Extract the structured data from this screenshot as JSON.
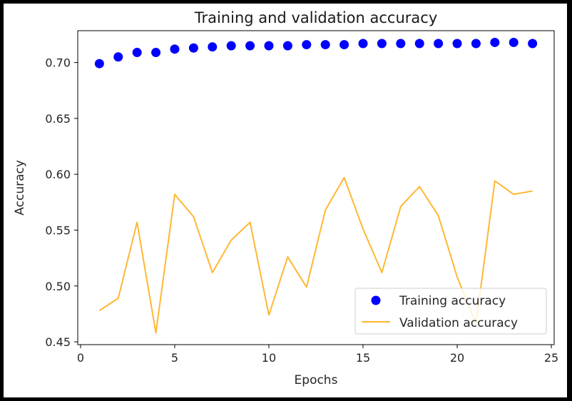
{
  "chart_data": {
    "type": "line",
    "title": "Training and validation accuracy",
    "xlabel": "Epochs",
    "ylabel": "Accuracy",
    "xlim": [
      -0.15,
      25.15
    ],
    "ylim": [
      0.4475,
      0.7285
    ],
    "x_ticks": [
      {
        "value": 0,
        "label": "0"
      },
      {
        "value": 5,
        "label": "5"
      },
      {
        "value": 10,
        "label": "10"
      },
      {
        "value": 15,
        "label": "15"
      },
      {
        "value": 20,
        "label": "20"
      },
      {
        "value": 25,
        "label": "25"
      }
    ],
    "y_ticks": [
      {
        "value": 0.45,
        "label": "0.45"
      },
      {
        "value": 0.5,
        "label": "0.50"
      },
      {
        "value": 0.55,
        "label": "0.55"
      },
      {
        "value": 0.6,
        "label": "0.60"
      },
      {
        "value": 0.65,
        "label": "0.65"
      },
      {
        "value": 0.7,
        "label": "0.70"
      }
    ],
    "grid": false,
    "legend_position": "lower-right",
    "x": [
      1,
      2,
      3,
      4,
      5,
      6,
      7,
      8,
      9,
      10,
      11,
      12,
      13,
      14,
      15,
      16,
      17,
      18,
      19,
      20,
      21,
      22,
      23,
      24
    ],
    "series": [
      {
        "name": "Training accuracy",
        "style": "points",
        "color": "#0000ff",
        "values": [
          0.699,
          0.705,
          0.709,
          0.709,
          0.712,
          0.713,
          0.714,
          0.715,
          0.715,
          0.715,
          0.715,
          0.716,
          0.716,
          0.716,
          0.717,
          0.717,
          0.717,
          0.717,
          0.717,
          0.717,
          0.717,
          0.718,
          0.718,
          0.717
        ]
      },
      {
        "name": "Validation accuracy",
        "style": "line",
        "color": "#ffa500",
        "values": [
          0.478,
          0.489,
          0.557,
          0.458,
          0.582,
          0.562,
          0.512,
          0.541,
          0.557,
          0.474,
          0.526,
          0.499,
          0.568,
          0.597,
          0.551,
          0.512,
          0.571,
          0.589,
          0.563,
          0.508,
          0.466,
          0.594,
          0.582,
          0.585
        ]
      }
    ]
  }
}
